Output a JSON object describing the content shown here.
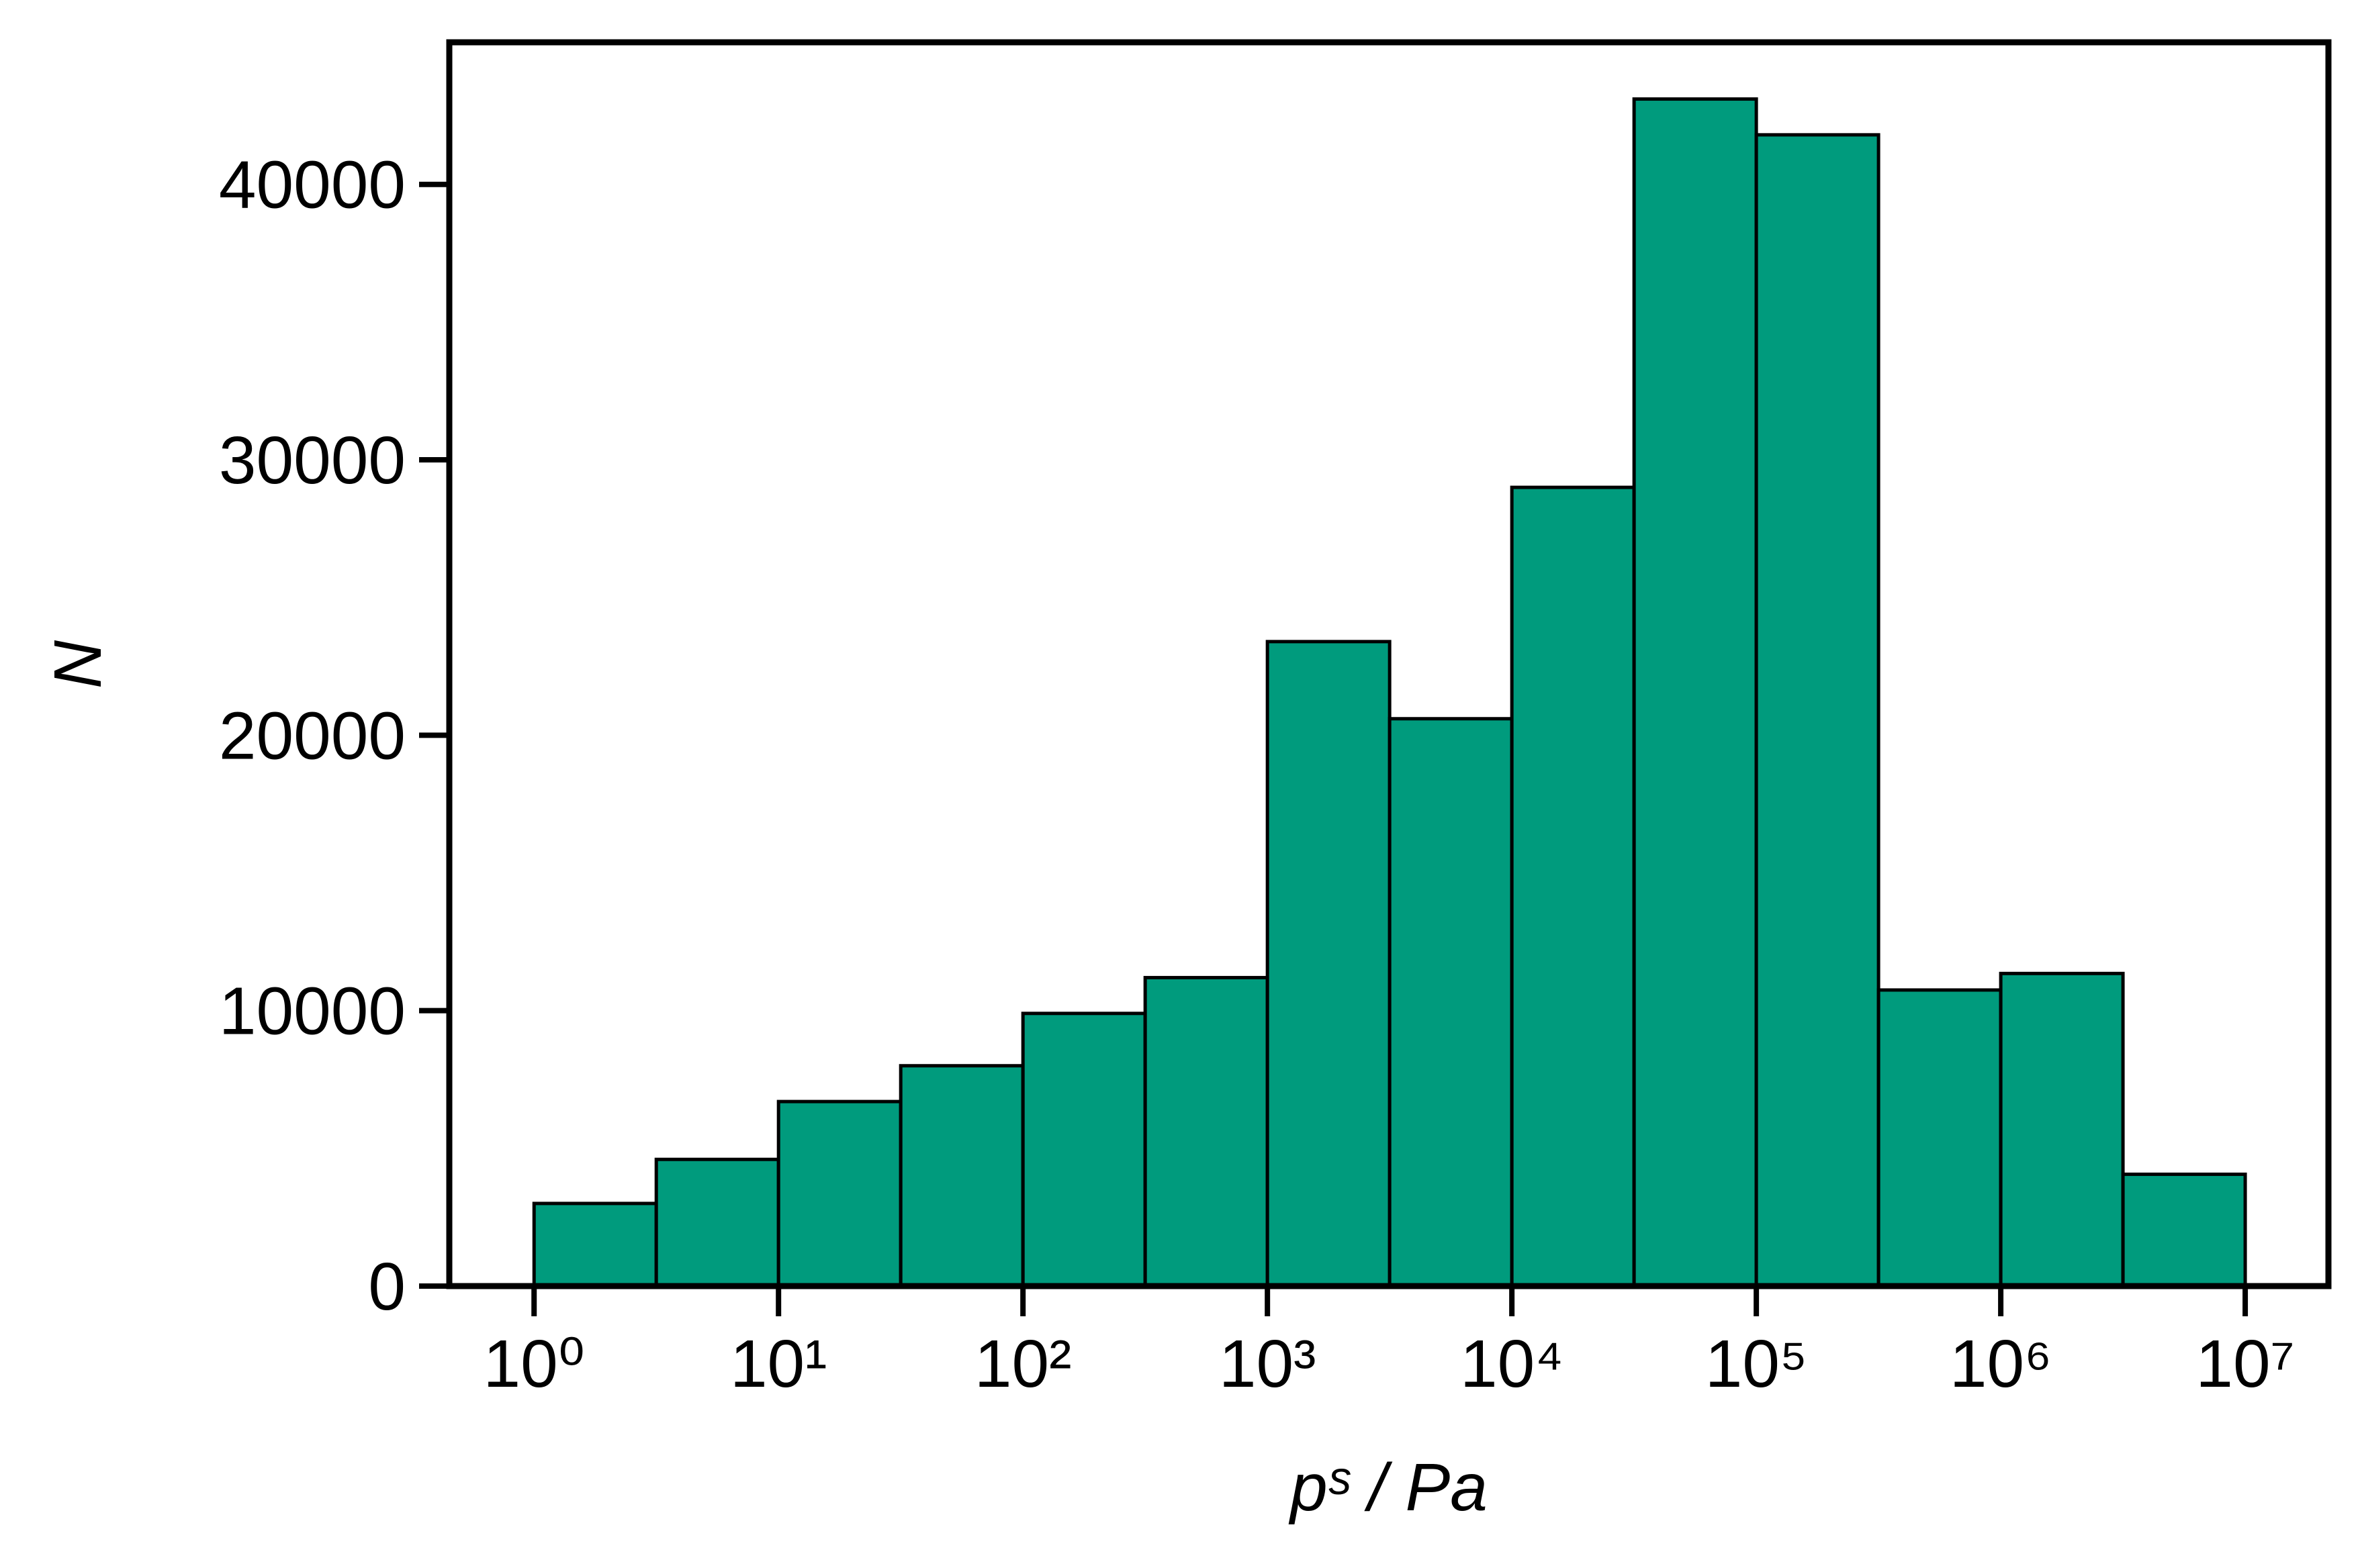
{
  "chart_data": {
    "type": "histogram",
    "xlabel": "pˢ / Pa",
    "ylabel": "N",
    "bins": [
      1,
      3.162,
      10,
      31.62,
      100,
      316.2,
      1000,
      3162,
      10000,
      31620,
      100000,
      316200,
      1000000,
      3162000,
      10000000
    ],
    "values": [
      3000,
      4600,
      6700,
      8000,
      9900,
      11200,
      23400,
      20600,
      29000,
      43100,
      41800,
      10750,
      11350,
      4060
    ],
    "color": "#009b7d",
    "xscale": "log",
    "xlim": [
      0.45,
      21900000
    ],
    "xticks": [
      {
        "value": 1,
        "label": "10⁰"
      },
      {
        "value": 10,
        "label": "10¹"
      },
      {
        "value": 100,
        "label": "10²"
      },
      {
        "value": 1000,
        "label": "10³"
      },
      {
        "value": 10000,
        "label": "10⁴"
      },
      {
        "value": 100000,
        "label": "10⁵"
      },
      {
        "value": 1000000,
        "label": "10⁶"
      },
      {
        "value": 10000000,
        "label": "10⁷"
      }
    ],
    "ylim": [
      0,
      45160
    ],
    "yticks": [
      0,
      10000,
      20000,
      30000,
      40000
    ],
    "grid": false
  }
}
